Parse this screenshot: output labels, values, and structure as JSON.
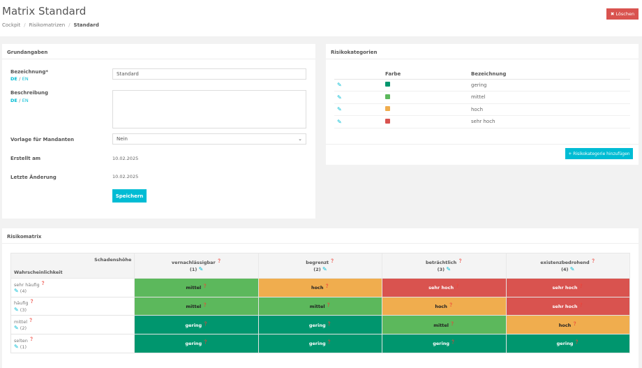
{
  "header": {
    "title": "Matrix Standard",
    "breadcrumb": [
      "Cockpit",
      "Risikomatrizen",
      "Standard"
    ],
    "delete_label": "✖ Löschen"
  },
  "grundangaben": {
    "title": "Grundangaben",
    "bezeichnung_label": "Bezeichnung*",
    "bezeichnung_value": "Standard",
    "beschreibung_label": "Beschreibung",
    "beschreibung_value": "",
    "lang_de": "DE",
    "lang_en": "EN",
    "lang_sep": "/",
    "vorlage_label": "Vorlage für Mandanten",
    "vorlage_value": "Nein",
    "erstellt_label": "Erstellt am",
    "erstellt_value": "10.02.2025",
    "aenderung_label": "Letzte Änderung",
    "aenderung_value": "10.02.2025",
    "save_label": "Speichern"
  },
  "risikokategorien": {
    "title": "Risikokategorien",
    "col_farbe": "Farbe",
    "col_bezeichnung": "Bezeichnung",
    "items": [
      {
        "name": "gering",
        "color": "#00966e"
      },
      {
        "name": "mittel",
        "color": "#5cb85c"
      },
      {
        "name": "hoch",
        "color": "#f0ad4e"
      },
      {
        "name": "sehr hoch",
        "color": "#d9534f"
      }
    ],
    "add_label": "+ Risikokategorie hinzufügen"
  },
  "risikomatrix": {
    "title": "Risikomatrix",
    "corner_top": "Schadenshöhe",
    "corner_bottom": "Wahrscheinlichkeit",
    "columns": [
      {
        "label": "vernachlässigbar",
        "num": "(1)"
      },
      {
        "label": "begrenzt",
        "num": "(2)"
      },
      {
        "label": "beträchtlich",
        "num": "(3)"
      },
      {
        "label": "existenzbedrohend",
        "num": "(4)"
      }
    ],
    "rows": [
      {
        "label": "sehr häufig",
        "num": "(4)",
        "cells": [
          "mittel",
          "hoch",
          "sehr hoch",
          "sehr hoch"
        ]
      },
      {
        "label": "häufig",
        "num": "(3)",
        "cells": [
          "mittel",
          "mittel",
          "hoch",
          "sehr hoch"
        ]
      },
      {
        "label": "mittel",
        "num": "(2)",
        "cells": [
          "gering",
          "gering",
          "mittel",
          "hoch"
        ]
      },
      {
        "label": "selten",
        "num": "(1)",
        "cells": [
          "gering",
          "gering",
          "gering",
          "gering"
        ]
      }
    ]
  }
}
